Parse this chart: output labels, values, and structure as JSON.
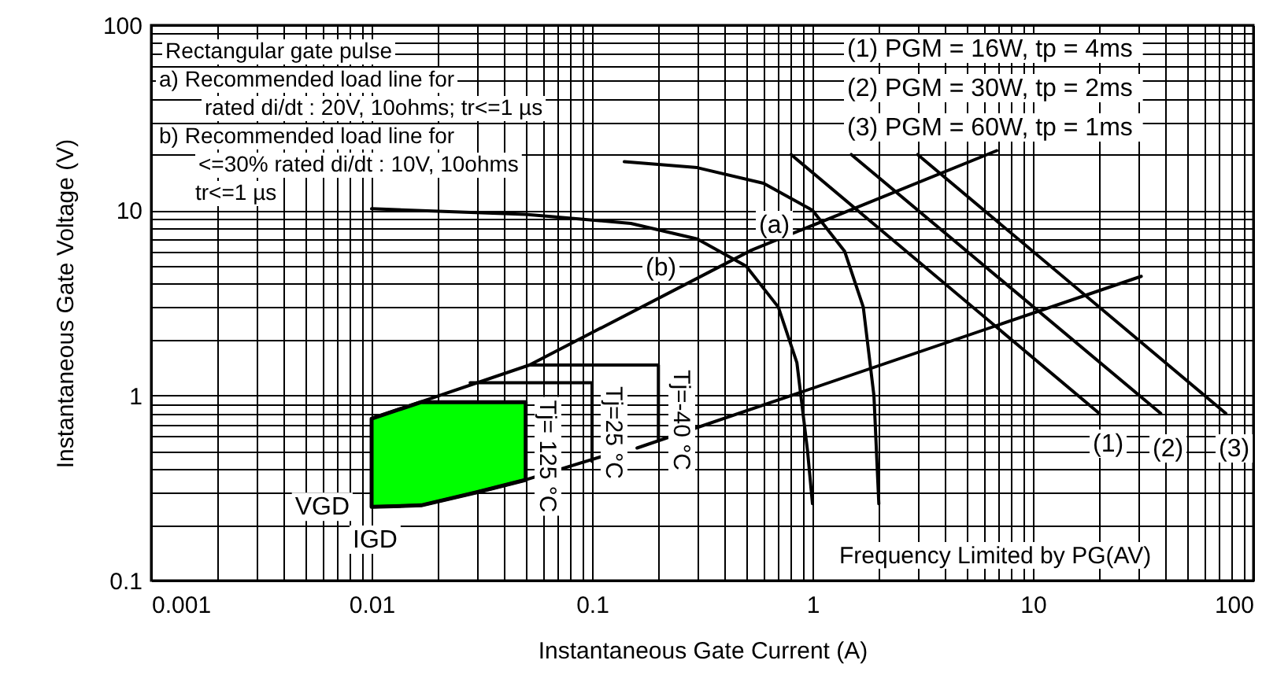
{
  "chart_data": {
    "type": "line",
    "xlabel": "Instantaneous Gate Current (A)",
    "ylabel": "Instantaneous Gate Voltage (V)",
    "log": "xy",
    "grid": true,
    "xlim": [
      0.001,
      100
    ],
    "xticks": [
      0.001,
      {
        "value": 0.002,
        "label": null
      },
      {
        "value": 0.003,
        "label": null
      },
      {
        "value": 0.004,
        "label": null
      },
      {
        "value": 0.005,
        "label": null
      },
      {
        "value": 0.006,
        "label": null
      },
      {
        "value": 0.007,
        "label": null
      },
      {
        "value": 0.008,
        "label": null
      },
      {
        "value": 0.009,
        "label": null
      },
      0.01,
      {
        "value": 0.02,
        "label": null
      },
      {
        "value": 0.03,
        "label": null
      },
      {
        "value": 0.04,
        "label": null
      },
      {
        "value": 0.05,
        "label": null
      },
      {
        "value": 0.06,
        "label": null
      },
      {
        "value": 0.07,
        "label": null
      },
      {
        "value": 0.08,
        "label": null
      },
      {
        "value": 0.09,
        "label": null
      },
      0.1,
      {
        "value": 0.2,
        "label": null
      },
      {
        "value": 0.3,
        "label": null
      },
      {
        "value": 0.4,
        "label": null
      },
      {
        "value": 0.5,
        "label": null
      },
      {
        "value": 0.6,
        "label": null
      },
      {
        "value": 0.7,
        "label": null
      },
      {
        "value": 0.8,
        "label": null
      },
      {
        "value": 0.9,
        "label": null
      },
      1,
      {
        "value": 2,
        "label": null
      },
      {
        "value": 3,
        "label": null
      },
      {
        "value": 4,
        "label": null
      },
      {
        "value": 5,
        "label": null
      },
      {
        "value": 6,
        "label": null
      },
      {
        "value": 7,
        "label": null
      },
      {
        "value": 8,
        "label": null
      },
      {
        "value": 9,
        "label": null
      },
      10,
      {
        "value": 20,
        "label": null
      },
      {
        "value": 30,
        "label": null
      },
      {
        "value": 40,
        "label": null
      },
      {
        "value": 50,
        "label": null
      },
      {
        "value": 60,
        "label": null
      },
      {
        "value": 70,
        "label": null
      },
      {
        "value": 80,
        "label": null
      },
      {
        "value": 90,
        "label": null
      },
      100
    ],
    "ylim": [
      0.1,
      100
    ],
    "yticks": [
      0.1,
      {
        "value": 0.2,
        "label": null
      },
      {
        "value": 0.3,
        "label": null
      },
      {
        "value": 0.4,
        "label": null
      },
      {
        "value": 0.5,
        "label": null
      },
      {
        "value": 0.6,
        "label": null
      },
      {
        "value": 0.7,
        "label": null
      },
      {
        "value": 0.8,
        "label": null
      },
      {
        "value": 0.9,
        "label": null
      },
      1,
      {
        "value": 2,
        "label": null
      },
      {
        "value": 3,
        "label": null
      },
      {
        "value": 4,
        "label": null
      },
      {
        "value": 5,
        "label": null
      },
      {
        "value": 6,
        "label": null
      },
      {
        "value": 7,
        "label": null
      },
      {
        "value": 8,
        "label": null
      },
      {
        "value": 9,
        "label": null
      },
      10,
      {
        "value": 20,
        "label": null
      },
      {
        "value": 30,
        "label": null
      },
      {
        "value": 40,
        "label": null
      },
      {
        "value": 50,
        "label": null
      },
      {
        "value": 60,
        "label": null
      },
      {
        "value": 70,
        "label": null
      },
      {
        "value": 80,
        "label": null
      },
      {
        "value": 90,
        "label": null
      },
      100
    ],
    "series": [
      {
        "type": "area",
        "color": "#00ff00",
        "x": [
          0.01,
          0.0168,
          0.03,
          0.05
        ],
        "values": [
          0.75,
          0.92,
          0.92,
          0.92
        ]
      },
      {
        "color": "#000000",
        "x": [
          0.14,
          0.3,
          0.6,
          1.0,
          1.4,
          1.7,
          1.9,
          2.0
        ],
        "values": [
          18.3,
          17,
          14,
          10,
          6,
          3,
          1,
          0.26
        ]
      },
      {
        "color": "#000000",
        "x": [
          0.01,
          0.05,
          0.15,
          0.3,
          0.5,
          0.7,
          0.85,
          0.95,
          1.0
        ],
        "values": [
          10.2,
          9.5,
          8.5,
          7,
          5,
          3,
          1.5,
          0.5,
          0.26
        ]
      },
      {
        "color": "#000000",
        "x": [
          0.01,
          0.052,
          0.53,
          6.85
        ],
        "values": [
          0.75,
          1.46,
          6.1,
          21
        ]
      },
      {
        "color": "#000000",
        "x": [
          0.16,
          31
        ],
        "values": [
          0.52,
          4.4
        ]
      },
      {
        "color": "#000000",
        "x": [
          0.052,
          0.2,
          0.2
        ],
        "values": [
          1.46,
          1.46,
          0.57
        ]
      },
      {
        "color": "#000000",
        "x": [
          0.028,
          0.1,
          0.1
        ],
        "values": [
          1.17,
          1.17,
          0.44
        ]
      },
      {
        "color": "#000000",
        "x": [
          0.01,
          0.0168,
          0.03,
          0.05,
          0.112
        ],
        "values": [
          0.25,
          0.255,
          0.3,
          0.35,
          0.47
        ]
      },
      {
        "color": "#000000",
        "x": [
          0.8,
          20
        ],
        "values": [
          20,
          0.8
        ]
      },
      {
        "color": "#000000",
        "x": [
          1.5,
          38
        ],
        "values": [
          20,
          0.8
        ]
      },
      {
        "color": "#000000",
        "x": [
          3,
          75
        ],
        "values": [
          20,
          0.8
        ]
      }
    ],
    "annotations": [
      "Rectangular gate pulse",
      "a) Recommended load line for",
      "rated di/dt : 20V, 10ohms; tr<=1 µs",
      "b) Recommended load line for",
      "<=30% rated di/dt : 10V, 10ohms",
      "tr<=1 µs",
      "(1) PGM = 16W,  tp = 4ms",
      "(2) PGM = 30W,  tp = 2ms",
      "(3) PGM = 60W,  tp = 1ms",
      "Frequency Limited by PG(AV)",
      "(a)",
      "(b)",
      "(1)",
      "(2)",
      "(3)",
      "Tj= 125 °C",
      "Tj=25 °C",
      "Tj=-40 °C",
      {
        "text": "VGD",
        "x": 0.01,
        "y": 0.25
      },
      "IGD"
    ]
  }
}
